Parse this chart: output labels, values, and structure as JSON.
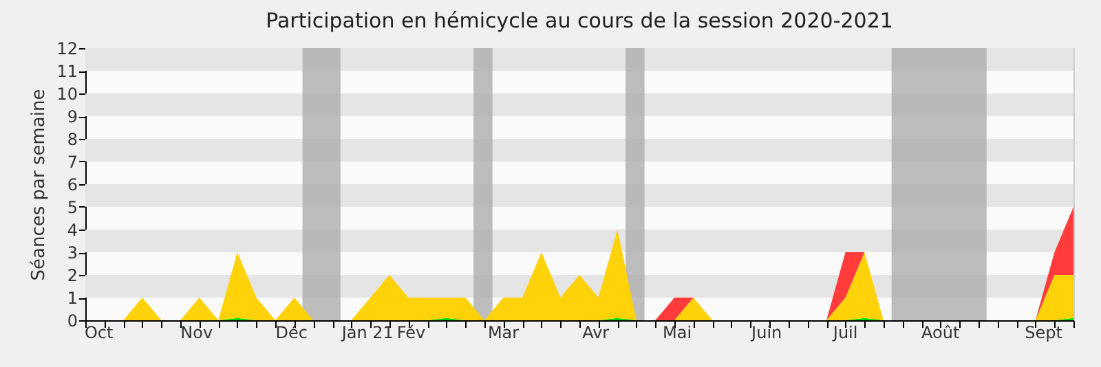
{
  "chart_data": {
    "type": "area",
    "title": "Participation en hémicycle au cours de la session 2020-2021",
    "ylabel": "Séances par semaine",
    "stacked": true,
    "x": [
      "2020-10-01",
      "2020-10-08",
      "2020-10-15",
      "2020-10-22",
      "2020-10-29",
      "2020-11-05",
      "2020-11-12",
      "2020-11-19",
      "2020-11-26",
      "2020-12-03",
      "2020-12-10",
      "2020-12-17",
      "2020-12-24",
      "2020-12-31",
      "2021-01-07",
      "2021-01-14",
      "2021-01-21",
      "2021-01-28",
      "2021-02-04",
      "2021-02-11",
      "2021-02-18",
      "2021-02-25",
      "2021-03-04",
      "2021-03-11",
      "2021-03-18",
      "2021-03-25",
      "2021-04-01",
      "2021-04-08",
      "2021-04-15",
      "2021-04-22",
      "2021-04-29",
      "2021-05-06",
      "2021-05-13",
      "2021-05-20",
      "2021-05-27",
      "2021-06-03",
      "2021-06-10",
      "2021-06-17",
      "2021-06-24",
      "2021-07-01",
      "2021-07-08",
      "2021-07-15",
      "2021-07-22",
      "2021-07-29",
      "2021-08-05",
      "2021-08-12",
      "2021-08-19",
      "2021-08-26",
      "2021-09-02",
      "2021-09-09",
      "2021-09-16",
      "2021-09-23",
      "2021-09-30"
    ],
    "series": [
      {
        "color": "#00dd00",
        "values": [
          0,
          0,
          0,
          0,
          0,
          0,
          0,
          0,
          0.1,
          0,
          0,
          0,
          0,
          0,
          0,
          0,
          0,
          0,
          0,
          0.1,
          0,
          0,
          0,
          0,
          0,
          0,
          0,
          0,
          0.1,
          0,
          0,
          0,
          0,
          0,
          0,
          0,
          0,
          0,
          0,
          0,
          0,
          0.1,
          0,
          0,
          0,
          0,
          0,
          0,
          0,
          0,
          0,
          0,
          0.1
        ]
      },
      {
        "color": "#ffd20a",
        "values": [
          0,
          0,
          0,
          1,
          0,
          0,
          1,
          0,
          2.9,
          1,
          0,
          1,
          0,
          0,
          0,
          1,
          2,
          1,
          1,
          0.9,
          1,
          0,
          1,
          1,
          3,
          1,
          2,
          1,
          3.9,
          0,
          0,
          0,
          1,
          0,
          0,
          0,
          0,
          0,
          0,
          0,
          1,
          2.9,
          0,
          0,
          0,
          0,
          0,
          0,
          0,
          0,
          0,
          2,
          1.9
        ]
      },
      {
        "color": "#ff3b3b",
        "values": [
          0,
          0,
          0,
          0,
          0,
          0,
          0,
          0,
          0,
          0,
          0,
          0,
          0,
          0,
          0,
          0,
          0,
          0,
          0,
          0,
          0,
          0,
          0,
          0,
          0,
          0,
          0,
          0,
          0,
          0,
          0,
          1,
          0,
          0,
          0,
          0,
          0,
          0,
          0,
          0,
          2,
          0,
          0,
          0,
          0,
          0,
          0,
          0,
          0,
          0,
          0,
          1,
          3
        ]
      }
    ],
    "xlim": [
      "2020-10-01",
      "2021-09-30"
    ],
    "xticks": [
      {
        "value": "2020-10-01",
        "label": null
      },
      {
        "value": "2020-10-08",
        "label": null
      },
      {
        "value": "2020-10-15",
        "label": null
      },
      {
        "value": "2020-10-22",
        "label": null
      },
      {
        "value": "2020-10-29",
        "label": null
      },
      {
        "value": "2020-11-05",
        "label": null
      },
      {
        "value": "2020-11-12",
        "label": null
      },
      {
        "value": "2020-11-19",
        "label": null
      },
      {
        "value": "2020-11-26",
        "label": null
      },
      {
        "value": "2020-12-03",
        "label": null
      },
      {
        "value": "2020-12-10",
        "label": null
      },
      {
        "value": "2020-12-17",
        "label": null
      },
      {
        "value": "2020-12-24",
        "label": null
      },
      {
        "value": "2020-12-31",
        "label": null
      },
      {
        "value": "2021-01-07",
        "label": null
      },
      {
        "value": "2021-01-14",
        "label": null
      },
      {
        "value": "2021-01-21",
        "label": null
      },
      {
        "value": "2021-01-28",
        "label": null
      },
      {
        "value": "2021-02-04",
        "label": null
      },
      {
        "value": "2021-02-11",
        "label": null
      },
      {
        "value": "2021-02-18",
        "label": null
      },
      {
        "value": "2021-02-25",
        "label": null
      },
      {
        "value": "2021-03-04",
        "label": null
      },
      {
        "value": "2021-03-11",
        "label": null
      },
      {
        "value": "2021-03-18",
        "label": null
      },
      {
        "value": "2021-03-25",
        "label": null
      },
      {
        "value": "2021-04-01",
        "label": null
      },
      {
        "value": "2021-04-08",
        "label": null
      },
      {
        "value": "2021-04-15",
        "label": null
      },
      {
        "value": "2021-04-22",
        "label": null
      },
      {
        "value": "2021-04-29",
        "label": null
      },
      {
        "value": "2021-05-06",
        "label": null
      },
      {
        "value": "2021-05-13",
        "label": null
      },
      {
        "value": "2021-05-20",
        "label": null
      },
      {
        "value": "2021-05-27",
        "label": null
      },
      {
        "value": "2021-06-03",
        "label": null
      },
      {
        "value": "2021-06-10",
        "label": null
      },
      {
        "value": "2021-06-17",
        "label": null
      },
      {
        "value": "2021-06-24",
        "label": null
      },
      {
        "value": "2021-07-01",
        "label": null
      },
      {
        "value": "2021-07-08",
        "label": null
      },
      {
        "value": "2021-07-15",
        "label": null
      },
      {
        "value": "2021-07-22",
        "label": null
      },
      {
        "value": "2021-07-29",
        "label": null
      },
      {
        "value": "2021-08-05",
        "label": null
      },
      {
        "value": "2021-08-12",
        "label": null
      },
      {
        "value": "2021-08-19",
        "label": null
      },
      {
        "value": "2021-08-26",
        "label": null
      },
      {
        "value": "2021-09-02",
        "label": null
      },
      {
        "value": "2021-09-09",
        "label": null
      },
      {
        "value": "2021-09-16",
        "label": null
      },
      {
        "value": "2021-09-23",
        "label": null
      },
      {
        "value": "2021-09-30",
        "label": null
      },
      {
        "value": "2020-10-06",
        "label": "Oct"
      },
      {
        "value": "2020-11-11",
        "label": "Nov"
      },
      {
        "value": "2020-12-16",
        "label": "Déc"
      },
      {
        "value": "2021-01-13",
        "label": "Jan 21"
      },
      {
        "value": "2021-01-29",
        "label": "Fév"
      },
      {
        "value": "2021-03-04",
        "label": "Mar"
      },
      {
        "value": "2021-04-07",
        "label": "Avr"
      },
      {
        "value": "2021-05-07",
        "label": "Mai"
      },
      {
        "value": "2021-06-09",
        "label": "Juin"
      },
      {
        "value": "2021-07-08",
        "label": "Juil"
      },
      {
        "value": "2021-08-12",
        "label": "Août"
      },
      {
        "value": "2021-09-19",
        "label": "Sept"
      }
    ],
    "ylim": [
      0,
      12
    ],
    "yticks": [
      0,
      1,
      2,
      3,
      4,
      5,
      6,
      7,
      8,
      9,
      10,
      11,
      12
    ],
    "bands": [
      {
        "axis": "y",
        "from": 1,
        "to": 2,
        "color": "#e5e5e5"
      },
      {
        "axis": "y",
        "from": 3,
        "to": 4,
        "color": "#e5e5e5"
      },
      {
        "axis": "y",
        "from": 5,
        "to": 6,
        "color": "#e5e5e5"
      },
      {
        "axis": "y",
        "from": 7,
        "to": 8,
        "color": "#e5e5e5"
      },
      {
        "axis": "y",
        "from": 9,
        "to": 10,
        "color": "#e5e5e5"
      },
      {
        "axis": "y",
        "from": 11,
        "to": 12,
        "color": "#e5e5e5"
      },
      {
        "axis": "x",
        "from": "2020-12-20",
        "to": "2021-01-03",
        "color": "#a8a8a8"
      },
      {
        "axis": "x",
        "from": "2021-02-21",
        "to": "2021-02-28",
        "color": "#a8a8a8"
      },
      {
        "axis": "x",
        "from": "2021-04-18",
        "to": "2021-04-25",
        "color": "#a8a8a8"
      },
      {
        "axis": "x",
        "from": "2021-07-25",
        "to": "2021-08-29",
        "color": "#a8a8a8"
      }
    ]
  }
}
